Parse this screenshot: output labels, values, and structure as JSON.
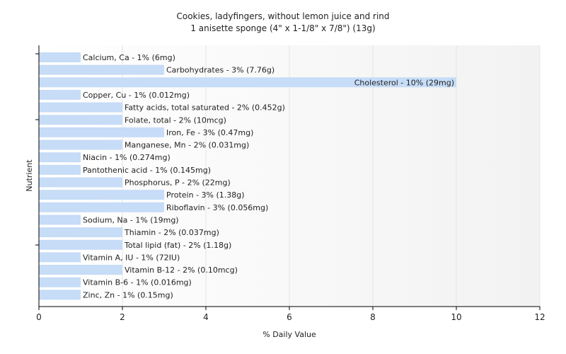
{
  "chart_data": {
    "type": "bar",
    "orientation": "horizontal",
    "title": "Cookies, ladyfingers, without lemon juice and rind",
    "subtitle": "1 anisette sponge (4\" x 1-1/8\" x 7/8\") (13g)",
    "xlabel": "% Daily Value",
    "ylabel": "Nutrient",
    "xlim": [
      0,
      12
    ],
    "xticks": [
      0,
      2,
      4,
      6,
      8,
      10,
      12
    ],
    "grid": true,
    "bar_color": "#c6dcf7",
    "bars": [
      {
        "label": "Calcium, Ca - 1% (6mg)",
        "value": 1
      },
      {
        "label": "Carbohydrates - 3% (7.76g)",
        "value": 3
      },
      {
        "label": "Cholesterol - 10% (29mg)",
        "value": 10
      },
      {
        "label": "Copper, Cu - 1% (0.012mg)",
        "value": 1
      },
      {
        "label": "Fatty acids, total saturated - 2% (0.452g)",
        "value": 2
      },
      {
        "label": "Folate, total - 2% (10mcg)",
        "value": 2
      },
      {
        "label": "Iron, Fe - 3% (0.47mg)",
        "value": 3
      },
      {
        "label": "Manganese, Mn - 2% (0.031mg)",
        "value": 2
      },
      {
        "label": "Niacin - 1% (0.274mg)",
        "value": 1
      },
      {
        "label": "Pantothenic acid - 1% (0.145mg)",
        "value": 1
      },
      {
        "label": "Phosphorus, P - 2% (22mg)",
        "value": 2
      },
      {
        "label": "Protein - 3% (1.38g)",
        "value": 3
      },
      {
        "label": "Riboflavin - 3% (0.056mg)",
        "value": 3
      },
      {
        "label": "Sodium, Na - 1% (19mg)",
        "value": 1
      },
      {
        "label": "Thiamin - 2% (0.037mg)",
        "value": 2
      },
      {
        "label": "Total lipid (fat) - 2% (1.18g)",
        "value": 2
      },
      {
        "label": "Vitamin A, IU - 1% (72IU)",
        "value": 1
      },
      {
        "label": "Vitamin B-12 - 2% (0.10mcg)",
        "value": 2
      },
      {
        "label": "Vitamin B-6 - 1% (0.016mg)",
        "value": 1
      },
      {
        "label": "Zinc, Zn - 1% (0.15mg)",
        "value": 1
      }
    ]
  }
}
